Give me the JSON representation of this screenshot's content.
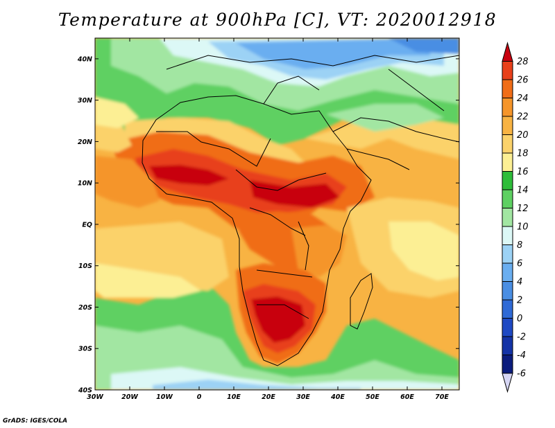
{
  "title": "Temperature at 900hPa [C], VT: 2020012918",
  "credit": "GrADS: IGES/COLA",
  "map": {
    "variable": "Temperature at 900hPa",
    "units": "C",
    "valid_time": "2020012918",
    "lon_range": [
      -30,
      75
    ],
    "lat_range": [
      -40,
      45
    ],
    "lon_ticks": [
      "30W",
      "20W",
      "10W",
      "0",
      "10E",
      "20E",
      "30E",
      "40E",
      "50E",
      "60E",
      "70E"
    ],
    "lat_ticks": [
      "40N",
      "30N",
      "20N",
      "10N",
      "EQ",
      "10S",
      "20S",
      "30S",
      "40S"
    ]
  },
  "colorbar": {
    "labels": [
      "28",
      "26",
      "24",
      "22",
      "20",
      "18",
      "16",
      "14",
      "12",
      "10",
      "8",
      "6",
      "4",
      "2",
      "0",
      "-2",
      "-4",
      "-6"
    ],
    "colors_top_to_bottom": [
      "#c8000f",
      "#e8401a",
      "#f06d17",
      "#f5952a",
      "#f8b343",
      "#fbd26b",
      "#fcef94",
      "#2ebd3a",
      "#5ed062",
      "#a2e6a2",
      "#dcf8f6",
      "#9cd2f5",
      "#6aaef0",
      "#4a8ee3",
      "#2f6ad6",
      "#1e49c3",
      "#1433a6",
      "#0b1c7d",
      "#d6d6f4"
    ]
  }
}
